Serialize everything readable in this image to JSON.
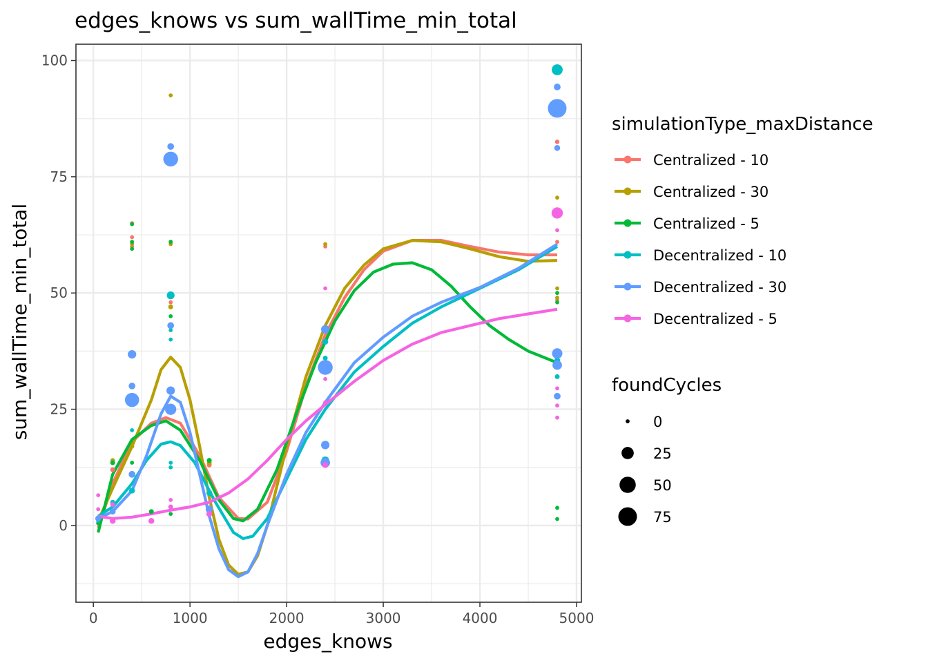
{
  "chart_data": {
    "type": "scatter",
    "title": "edges_knows  vs  sum_wallTime_min_total",
    "xlabel": "edges_knows",
    "ylabel": "sum_wallTime_min_total",
    "xlim": [
      -180,
      5050
    ],
    "ylim": [
      -16.5,
      103.5
    ],
    "x_ticks": [
      0,
      1000,
      2000,
      3000,
      4000,
      5000
    ],
    "x_tick_labels": [
      "0",
      "1000",
      "2000",
      "3000",
      "4000",
      "5000"
    ],
    "y_ticks": [
      0,
      25,
      50,
      75,
      100
    ],
    "y_tick_labels": [
      "0",
      "25",
      "50",
      "75",
      "100"
    ],
    "grid": true,
    "legend": {
      "position": "right",
      "color_title": "simulationType_maxDistance",
      "size_title": "foundCycles",
      "size_breaks": [
        0,
        25,
        50,
        75
      ],
      "size_labels": [
        "0",
        "25",
        "50",
        "75"
      ]
    },
    "series": [
      {
        "name": "Centralized - 10",
        "color": "#F8766D",
        "points": [
          [
            50,
            0.5,
            0
          ],
          [
            200,
            12,
            2
          ],
          [
            400,
            65,
            0
          ],
          [
            400,
            62,
            0
          ],
          [
            400,
            60,
            0
          ],
          [
            800,
            48,
            0
          ],
          [
            800,
            61,
            0
          ],
          [
            1200,
            13,
            2
          ],
          [
            2400,
            60,
            0
          ],
          [
            4800,
            82.5,
            1
          ],
          [
            4800,
            61,
            0
          ],
          [
            4800,
            48.5,
            0
          ]
        ],
        "smooth": [
          [
            50,
            -0.5
          ],
          [
            200,
            9
          ],
          [
            400,
            18
          ],
          [
            600,
            22
          ],
          [
            750,
            23.2
          ],
          [
            900,
            22
          ],
          [
            1100,
            15
          ],
          [
            1300,
            6
          ],
          [
            1500,
            1.5
          ],
          [
            1600,
            1.4
          ],
          [
            1800,
            5
          ],
          [
            2000,
            16
          ],
          [
            2200,
            30
          ],
          [
            2400,
            41
          ],
          [
            2600,
            49
          ],
          [
            2800,
            55
          ],
          [
            3000,
            59
          ],
          [
            3300,
            61.3
          ],
          [
            3600,
            61.3
          ],
          [
            3900,
            60
          ],
          [
            4200,
            58.8
          ],
          [
            4500,
            58.2
          ],
          [
            4800,
            58.2
          ]
        ]
      },
      {
        "name": "Centralized - 30",
        "color": "#B79F00",
        "points": [
          [
            50,
            0.5,
            0
          ],
          [
            200,
            14,
            1
          ],
          [
            400,
            17,
            1
          ],
          [
            400,
            60.5,
            0
          ],
          [
            800,
            92.5,
            0
          ],
          [
            800,
            60.5,
            0
          ],
          [
            800,
            47,
            2
          ],
          [
            1200,
            13.5,
            2
          ],
          [
            2400,
            60.5,
            0
          ],
          [
            4800,
            70.5,
            0
          ],
          [
            4800,
            51,
            0
          ],
          [
            4800,
            49,
            0
          ]
        ],
        "smooth": [
          [
            50,
            1
          ],
          [
            200,
            8
          ],
          [
            400,
            17
          ],
          [
            600,
            27
          ],
          [
            700,
            33.5
          ],
          [
            800,
            36.2
          ],
          [
            900,
            34
          ],
          [
            1000,
            27
          ],
          [
            1100,
            17
          ],
          [
            1200,
            6
          ],
          [
            1300,
            -3
          ],
          [
            1400,
            -8.5
          ],
          [
            1500,
            -10.5
          ],
          [
            1600,
            -10
          ],
          [
            1700,
            -6.5
          ],
          [
            1800,
            0
          ],
          [
            2000,
            17
          ],
          [
            2200,
            32
          ],
          [
            2400,
            43
          ],
          [
            2600,
            51
          ],
          [
            2800,
            56
          ],
          [
            3000,
            59.5
          ],
          [
            3300,
            61.3
          ],
          [
            3600,
            61
          ],
          [
            3900,
            59.5
          ],
          [
            4200,
            57.8
          ],
          [
            4500,
            56.8
          ],
          [
            4800,
            57
          ]
        ]
      },
      {
        "name": "Centralized - 5",
        "color": "#00BA38",
        "points": [
          [
            50,
            0.5,
            0
          ],
          [
            200,
            13.5,
            2
          ],
          [
            400,
            64.8,
            0
          ],
          [
            400,
            61,
            0
          ],
          [
            400,
            59.5,
            0
          ],
          [
            400,
            13.5,
            0
          ],
          [
            600,
            3,
            2
          ],
          [
            800,
            61,
            0
          ],
          [
            800,
            45,
            0
          ],
          [
            800,
            2.5,
            0
          ],
          [
            1200,
            14,
            2
          ],
          [
            2400,
            13,
            0
          ],
          [
            4800,
            50,
            0
          ],
          [
            4800,
            48,
            0
          ],
          [
            4800,
            3.8,
            0
          ],
          [
            4800,
            1.4,
            0
          ]
        ],
        "smooth": [
          [
            50,
            -1.5
          ],
          [
            200,
            11
          ],
          [
            400,
            18.5
          ],
          [
            600,
            21.5
          ],
          [
            750,
            22.5
          ],
          [
            900,
            20.5
          ],
          [
            1100,
            14
          ],
          [
            1300,
            5.5
          ],
          [
            1450,
            1.5
          ],
          [
            1550,
            1
          ],
          [
            1700,
            3.5
          ],
          [
            1900,
            12
          ],
          [
            2100,
            24
          ],
          [
            2300,
            35
          ],
          [
            2500,
            44
          ],
          [
            2700,
            50.5
          ],
          [
            2900,
            54.5
          ],
          [
            3100,
            56.2
          ],
          [
            3300,
            56.5
          ],
          [
            3500,
            55
          ],
          [
            3700,
            51.5
          ],
          [
            3900,
            47
          ],
          [
            4100,
            43
          ],
          [
            4300,
            40
          ],
          [
            4500,
            37.5
          ],
          [
            4800,
            35
          ]
        ]
      },
      {
        "name": "Decentralized - 10",
        "color": "#00BFC4",
        "points": [
          [
            50,
            1,
            0
          ],
          [
            200,
            5,
            2
          ],
          [
            400,
            20.5,
            0
          ],
          [
            400,
            7.5,
            5
          ],
          [
            800,
            49.5,
            12
          ],
          [
            800,
            40,
            0
          ],
          [
            800,
            42,
            0
          ],
          [
            800,
            13.5,
            0
          ],
          [
            800,
            12.5,
            0
          ],
          [
            1200,
            7,
            5
          ],
          [
            2400,
            39.5,
            5
          ],
          [
            2400,
            36,
            2
          ],
          [
            2400,
            14,
            12
          ],
          [
            4800,
            98,
            28
          ],
          [
            4800,
            35.5,
            5
          ],
          [
            4800,
            32,
            2
          ]
        ],
        "smooth": [
          [
            50,
            2
          ],
          [
            200,
            4
          ],
          [
            400,
            9
          ],
          [
            550,
            14
          ],
          [
            700,
            17.5
          ],
          [
            800,
            18
          ],
          [
            900,
            17.2
          ],
          [
            1050,
            13.5
          ],
          [
            1250,
            5.5
          ],
          [
            1450,
            -1.5
          ],
          [
            1550,
            -2.8
          ],
          [
            1650,
            -2.3
          ],
          [
            1800,
            1.5
          ],
          [
            2000,
            10
          ],
          [
            2200,
            18.5
          ],
          [
            2400,
            25
          ],
          [
            2700,
            33
          ],
          [
            3000,
            38.5
          ],
          [
            3300,
            43.5
          ],
          [
            3600,
            47
          ],
          [
            4000,
            51
          ],
          [
            4400,
            55
          ],
          [
            4800,
            60
          ]
        ]
      },
      {
        "name": "Decentralized - 30",
        "color": "#619CFF",
        "points": [
          [
            50,
            1.5,
            5
          ],
          [
            200,
            3,
            5
          ],
          [
            400,
            36.8,
            15
          ],
          [
            400,
            30,
            8
          ],
          [
            400,
            27,
            50
          ],
          [
            400,
            11,
            8
          ],
          [
            800,
            81.5,
            8
          ],
          [
            800,
            78.8,
            55
          ],
          [
            800,
            43,
            8
          ],
          [
            800,
            29,
            15
          ],
          [
            800,
            25,
            30
          ],
          [
            1200,
            3.5,
            10
          ],
          [
            2400,
            42.2,
            15
          ],
          [
            2400,
            34,
            55
          ],
          [
            2400,
            17.3,
            15
          ],
          [
            2400,
            13.5,
            20
          ],
          [
            4800,
            94.3,
            8
          ],
          [
            4800,
            89.7,
            90
          ],
          [
            4800,
            81.2,
            5
          ],
          [
            4800,
            37,
            25
          ],
          [
            4800,
            34.5,
            20
          ],
          [
            4800,
            27.8,
            8
          ]
        ],
        "smooth": [
          [
            50,
            1.5
          ],
          [
            200,
            3
          ],
          [
            400,
            7.5
          ],
          [
            550,
            15
          ],
          [
            700,
            24
          ],
          [
            800,
            27.8
          ],
          [
            900,
            26.5
          ],
          [
            1000,
            20
          ],
          [
            1100,
            11
          ],
          [
            1200,
            2
          ],
          [
            1300,
            -5
          ],
          [
            1400,
            -9.5
          ],
          [
            1500,
            -11
          ],
          [
            1600,
            -10
          ],
          [
            1700,
            -6
          ],
          [
            1800,
            0
          ],
          [
            2000,
            11
          ],
          [
            2200,
            20
          ],
          [
            2400,
            26.5
          ],
          [
            2700,
            35
          ],
          [
            3000,
            40.5
          ],
          [
            3300,
            45
          ],
          [
            3600,
            48
          ],
          [
            4000,
            51.2
          ],
          [
            4400,
            55.3
          ],
          [
            4800,
            60.5
          ]
        ]
      },
      {
        "name": "Decentralized - 5",
        "color": "#F564E3",
        "points": [
          [
            50,
            6.5,
            0
          ],
          [
            50,
            3.5,
            0
          ],
          [
            200,
            4.5,
            2
          ],
          [
            200,
            1,
            5
          ],
          [
            600,
            1,
            5
          ],
          [
            800,
            5.5,
            0
          ],
          [
            800,
            4,
            2
          ],
          [
            1200,
            2.5,
            5
          ],
          [
            2400,
            51,
            0
          ],
          [
            2400,
            31.5,
            0
          ],
          [
            2400,
            26.5,
            0
          ],
          [
            2400,
            13,
            5
          ],
          [
            4800,
            67.2,
            30
          ],
          [
            4800,
            63.5,
            0
          ],
          [
            4800,
            29.5,
            0
          ],
          [
            4800,
            25.8,
            0
          ],
          [
            4800,
            23.2,
            0
          ]
        ],
        "smooth": [
          [
            50,
            2
          ],
          [
            200,
            1.5
          ],
          [
            400,
            1.8
          ],
          [
            600,
            2.5
          ],
          [
            800,
            3.3
          ],
          [
            1000,
            4
          ],
          [
            1200,
            5
          ],
          [
            1400,
            7
          ],
          [
            1600,
            10
          ],
          [
            1800,
            14
          ],
          [
            2000,
            18.5
          ],
          [
            2200,
            22.5
          ],
          [
            2400,
            26
          ],
          [
            2700,
            31
          ],
          [
            3000,
            35.5
          ],
          [
            3300,
            39
          ],
          [
            3600,
            41.5
          ],
          [
            3900,
            43
          ],
          [
            4200,
            44.5
          ],
          [
            4500,
            45.5
          ],
          [
            4800,
            46.5
          ]
        ]
      }
    ]
  }
}
